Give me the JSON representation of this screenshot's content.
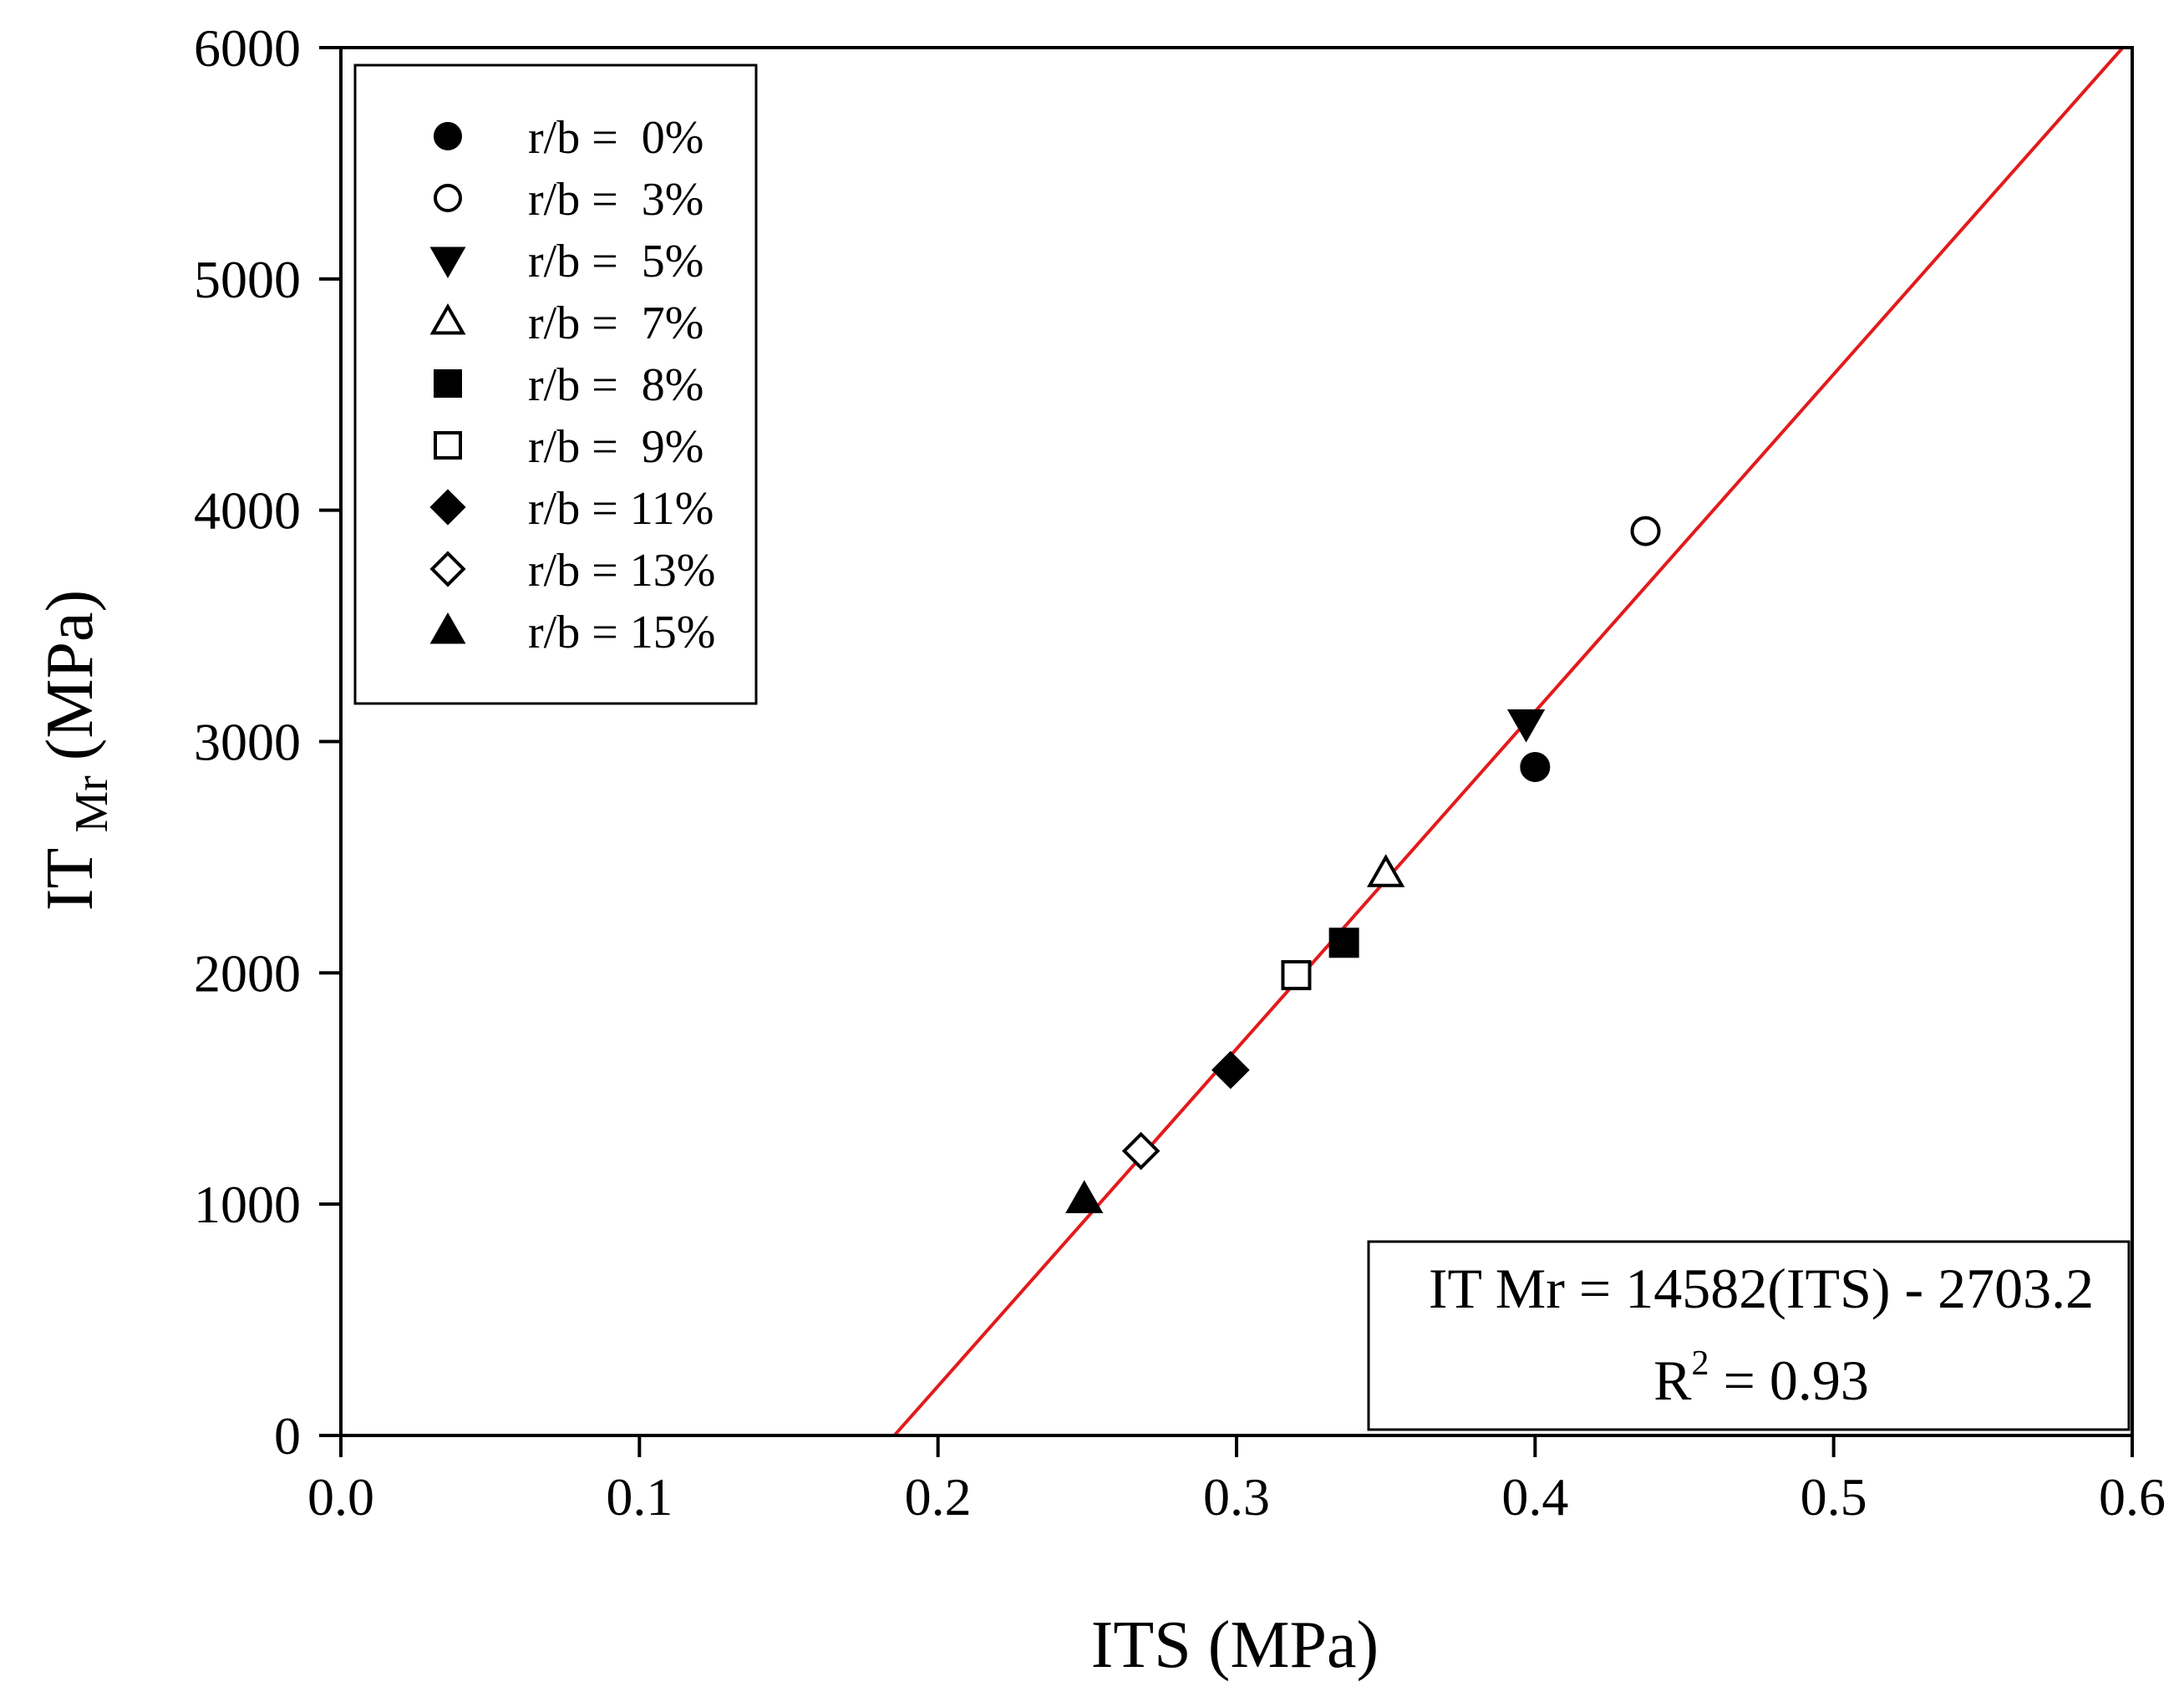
{
  "chart_data": {
    "type": "scatter",
    "title": "",
    "xlabel": "ITS (MPa)",
    "ylabel": {
      "main": "IT",
      "subscript": "Mr",
      "unit": "(MPa)"
    },
    "xlim": [
      0.0,
      0.6
    ],
    "ylim": [
      0,
      6000
    ],
    "xticks": [
      0.0,
      0.1,
      0.2,
      0.3,
      0.4,
      0.5,
      0.6
    ],
    "xtick_labels": [
      "0.0",
      "0.1",
      "0.2",
      "0.3",
      "0.4",
      "0.5",
      "0.6"
    ],
    "yticks": [
      0,
      1000,
      2000,
      3000,
      4000,
      5000,
      6000
    ],
    "ytick_labels": [
      "0",
      "1000",
      "2000",
      "3000",
      "4000",
      "5000",
      "6000"
    ],
    "grid": false,
    "legend_position": "top-left",
    "series": [
      {
        "name": "r/b =  0%",
        "marker": "circle",
        "filled": true,
        "x": 0.4,
        "y": 2890
      },
      {
        "name": "r/b =  3%",
        "marker": "circle",
        "filled": false,
        "x": 0.437,
        "y": 3910
      },
      {
        "name": "r/b =  5%",
        "marker": "triangle-down",
        "filled": true,
        "x": 0.397,
        "y": 3080
      },
      {
        "name": "r/b =  7%",
        "marker": "triangle-up",
        "filled": false,
        "x": 0.35,
        "y": 2430
      },
      {
        "name": "r/b =  8%",
        "marker": "square",
        "filled": true,
        "x": 0.336,
        "y": 2130
      },
      {
        "name": "r/b =  9%",
        "marker": "square",
        "filled": false,
        "x": 0.32,
        "y": 1990
      },
      {
        "name": "r/b = 11%",
        "marker": "diamond",
        "filled": true,
        "x": 0.298,
        "y": 1580
      },
      {
        "name": "r/b = 13%",
        "marker": "diamond",
        "filled": false,
        "x": 0.268,
        "y": 1230
      },
      {
        "name": "r/b = 15%",
        "marker": "triangle-up",
        "filled": true,
        "x": 0.249,
        "y": 1020
      }
    ],
    "fit_line": {
      "slope": 14582,
      "intercept": -2703.2,
      "x_range": [
        0.1854,
        0.5968
      ],
      "color": "#e31a1c"
    },
    "annotation": {
      "equation": "IT Mr = 14582(ITS) - 2703.2",
      "r2_label": "R",
      "r2_exponent": "2",
      "r2_value": " = 0.93"
    }
  }
}
